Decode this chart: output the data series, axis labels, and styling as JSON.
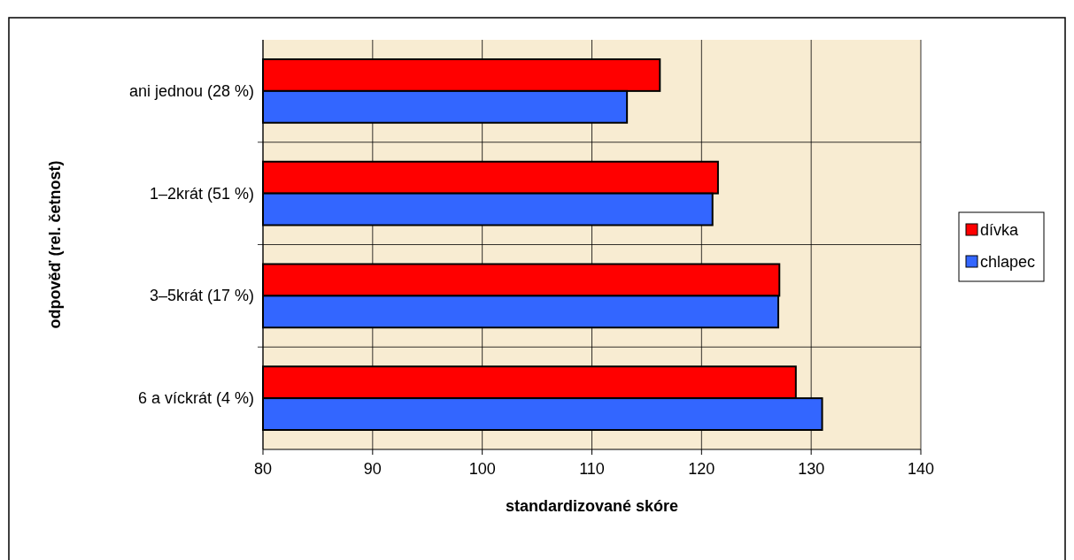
{
  "chart_data": {
    "type": "bar",
    "orientation": "horizontal",
    "ylabel": "odpověď (rel. četnost)",
    "xlabel": "standardizované skóre",
    "categories": [
      "ani jednou (28 %)",
      "1–2krát (51 %)",
      "3–5krát (17 %)",
      "6 a víckrát (4 %)"
    ],
    "series": [
      {
        "name": "dívka",
        "color": "#ff0000",
        "values": [
          116.2,
          121.5,
          127.1,
          128.6
        ]
      },
      {
        "name": "chlapec",
        "color": "#3366ff",
        "values": [
          113.2,
          121.0,
          127.0,
          131.0
        ]
      }
    ],
    "xlim": [
      80,
      140
    ],
    "xticks": [
      80,
      90,
      100,
      110,
      120,
      130,
      140
    ],
    "grid": true,
    "legend": "right"
  }
}
